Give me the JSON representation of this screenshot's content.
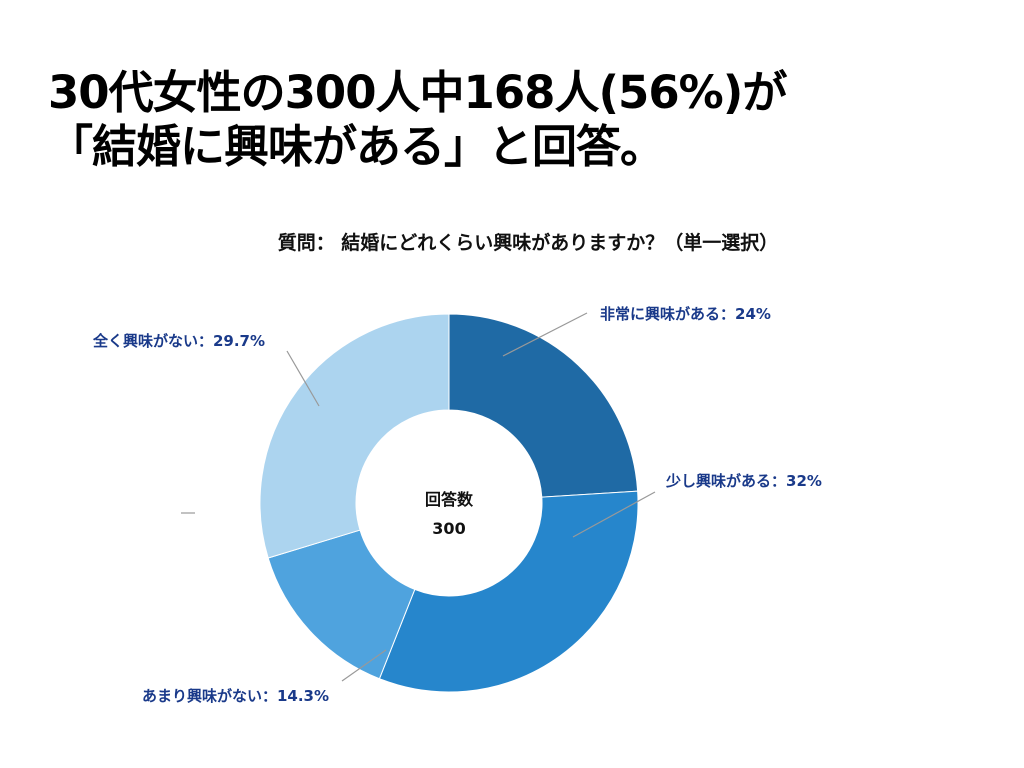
{
  "headline": {
    "line1": "30代女性の300人中168人(56%)が",
    "line2": "「結婚に興味がある」と回答。"
  },
  "question": "質問： 結婚にどれくらい興味がありますか？（単一選択）",
  "center": {
    "label": "回答数",
    "value": "300"
  },
  "chart_data": {
    "type": "pie",
    "donut": true,
    "slices": [
      {
        "label": "非常に興味がある：24%",
        "value": 24,
        "color": "#1f6aa5"
      },
      {
        "label": "少し興味がある：32%",
        "value": 32,
        "color": "#2686cc"
      },
      {
        "label": "あまり興味がない：14.3%",
        "value": 14.3,
        "color": "#4fa3de"
      },
      {
        "label": "全く興味がない：29.7%",
        "value": 29.7,
        "color": "#acd4ef"
      }
    ],
    "label_color": "#1a3a8a"
  }
}
